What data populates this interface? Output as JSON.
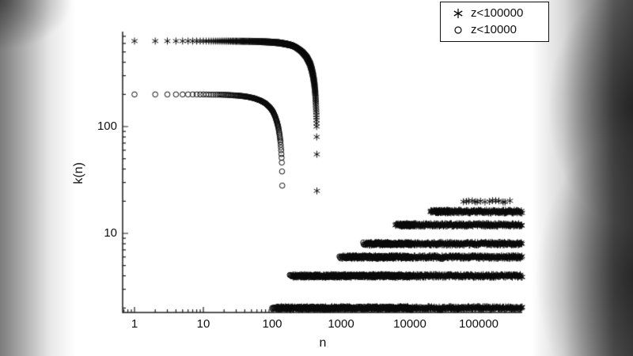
{
  "chart_data": {
    "type": "scatter",
    "title": "",
    "xlabel": "n",
    "ylabel": "k(n)",
    "xscale": "log",
    "yscale": "log",
    "xlim": [
      0.67,
      430000
    ],
    "ylim": [
      1.8,
      780
    ],
    "x_ticks": [
      "1",
      "10",
      "100",
      "1000",
      "10000",
      "100000"
    ],
    "y_ticks": [
      "10",
      "100"
    ],
    "grid": false,
    "legend_position": "top-right",
    "marker_color": "#0a0a0a",
    "series": [
      {
        "name": "z<100000",
        "marker": "asterisk",
        "plateau_k": 632,
        "drop_n": 447,
        "curve": [
          [
            1,
            632
          ],
          [
            2,
            632
          ],
          [
            3,
            632
          ],
          [
            4,
            632
          ],
          [
            5,
            632
          ],
          [
            6,
            632
          ],
          [
            8,
            632
          ],
          [
            10,
            632
          ],
          [
            13,
            631
          ],
          [
            17,
            631
          ],
          [
            22,
            631
          ],
          [
            28,
            630
          ],
          [
            36,
            629
          ],
          [
            46,
            628
          ],
          [
            60,
            626
          ],
          [
            78,
            622
          ],
          [
            100,
            616
          ],
          [
            125,
            609
          ],
          [
            150,
            597
          ],
          [
            180,
            583
          ],
          [
            210,
            564
          ],
          [
            240,
            533
          ],
          [
            270,
            503
          ],
          [
            295,
            472
          ],
          [
            316,
            447
          ],
          [
            335,
            416
          ],
          [
            355,
            386
          ],
          [
            375,
            343
          ],
          [
            392,
            302
          ],
          [
            405,
            266
          ],
          [
            415,
            235
          ],
          [
            424,
            200
          ],
          [
            431,
            166
          ],
          [
            437,
            135
          ],
          [
            440,
            115
          ],
          [
            442,
            100
          ]
        ],
        "curve_tail": [
          [
            443,
            80
          ],
          [
            445,
            55
          ],
          [
            446,
            25
          ]
        ],
        "bands": [
          {
            "k": 2,
            "n_start": 115,
            "n_end": 430000
          },
          {
            "k": 4,
            "n_start": 200,
            "n_end": 430000
          },
          {
            "k": 6,
            "n_start": 1050,
            "n_end": 430000
          },
          {
            "k": 8,
            "n_start": 2300,
            "n_end": 430000
          },
          {
            "k": 12,
            "n_start": 6200,
            "n_end": 430000,
            "cluster_near_start": true
          },
          {
            "k": 16,
            "n_start": 20000,
            "n_end": 430000,
            "cluster_near_start": true
          },
          {
            "k": 20,
            "n_start": 60000,
            "n_end": 300000,
            "sparse": true
          }
        ]
      },
      {
        "name": "z<10000",
        "marker": "circle",
        "plateau_k": 200,
        "drop_n": 141,
        "curve": [
          [
            1,
            200
          ],
          [
            2,
            200
          ],
          [
            3,
            200
          ],
          [
            4,
            200
          ],
          [
            5,
            200
          ],
          [
            6,
            200
          ],
          [
            8,
            200
          ],
          [
            10,
            200
          ],
          [
            13,
            199
          ],
          [
            17,
            199
          ],
          [
            22,
            198
          ],
          [
            28,
            196
          ],
          [
            35,
            194
          ],
          [
            44,
            190
          ],
          [
            55,
            184
          ],
          [
            68,
            175
          ],
          [
            80,
            165
          ],
          [
            92,
            152
          ],
          [
            102,
            139
          ],
          [
            110,
            125
          ],
          [
            117,
            111
          ],
          [
            123,
            98
          ],
          [
            128,
            84
          ],
          [
            132,
            72
          ],
          [
            135,
            60
          ],
          [
            137,
            51
          ],
          [
            138,
            46
          ]
        ],
        "curve_tail": [
          [
            139,
            38
          ],
          [
            140,
            28
          ]
        ],
        "bands": [
          {
            "k": 2,
            "n_start": 100,
            "n_end": 10000,
            "end_dot": true
          },
          {
            "k": 4,
            "n_start": 180,
            "n_end": 10000,
            "end_dot": true
          },
          {
            "k": 6,
            "n_start": 950,
            "n_end": 10000,
            "end_dot": true
          },
          {
            "k": 8,
            "n_start": 2100,
            "n_end": 10000,
            "end_dot": true
          }
        ]
      }
    ]
  }
}
